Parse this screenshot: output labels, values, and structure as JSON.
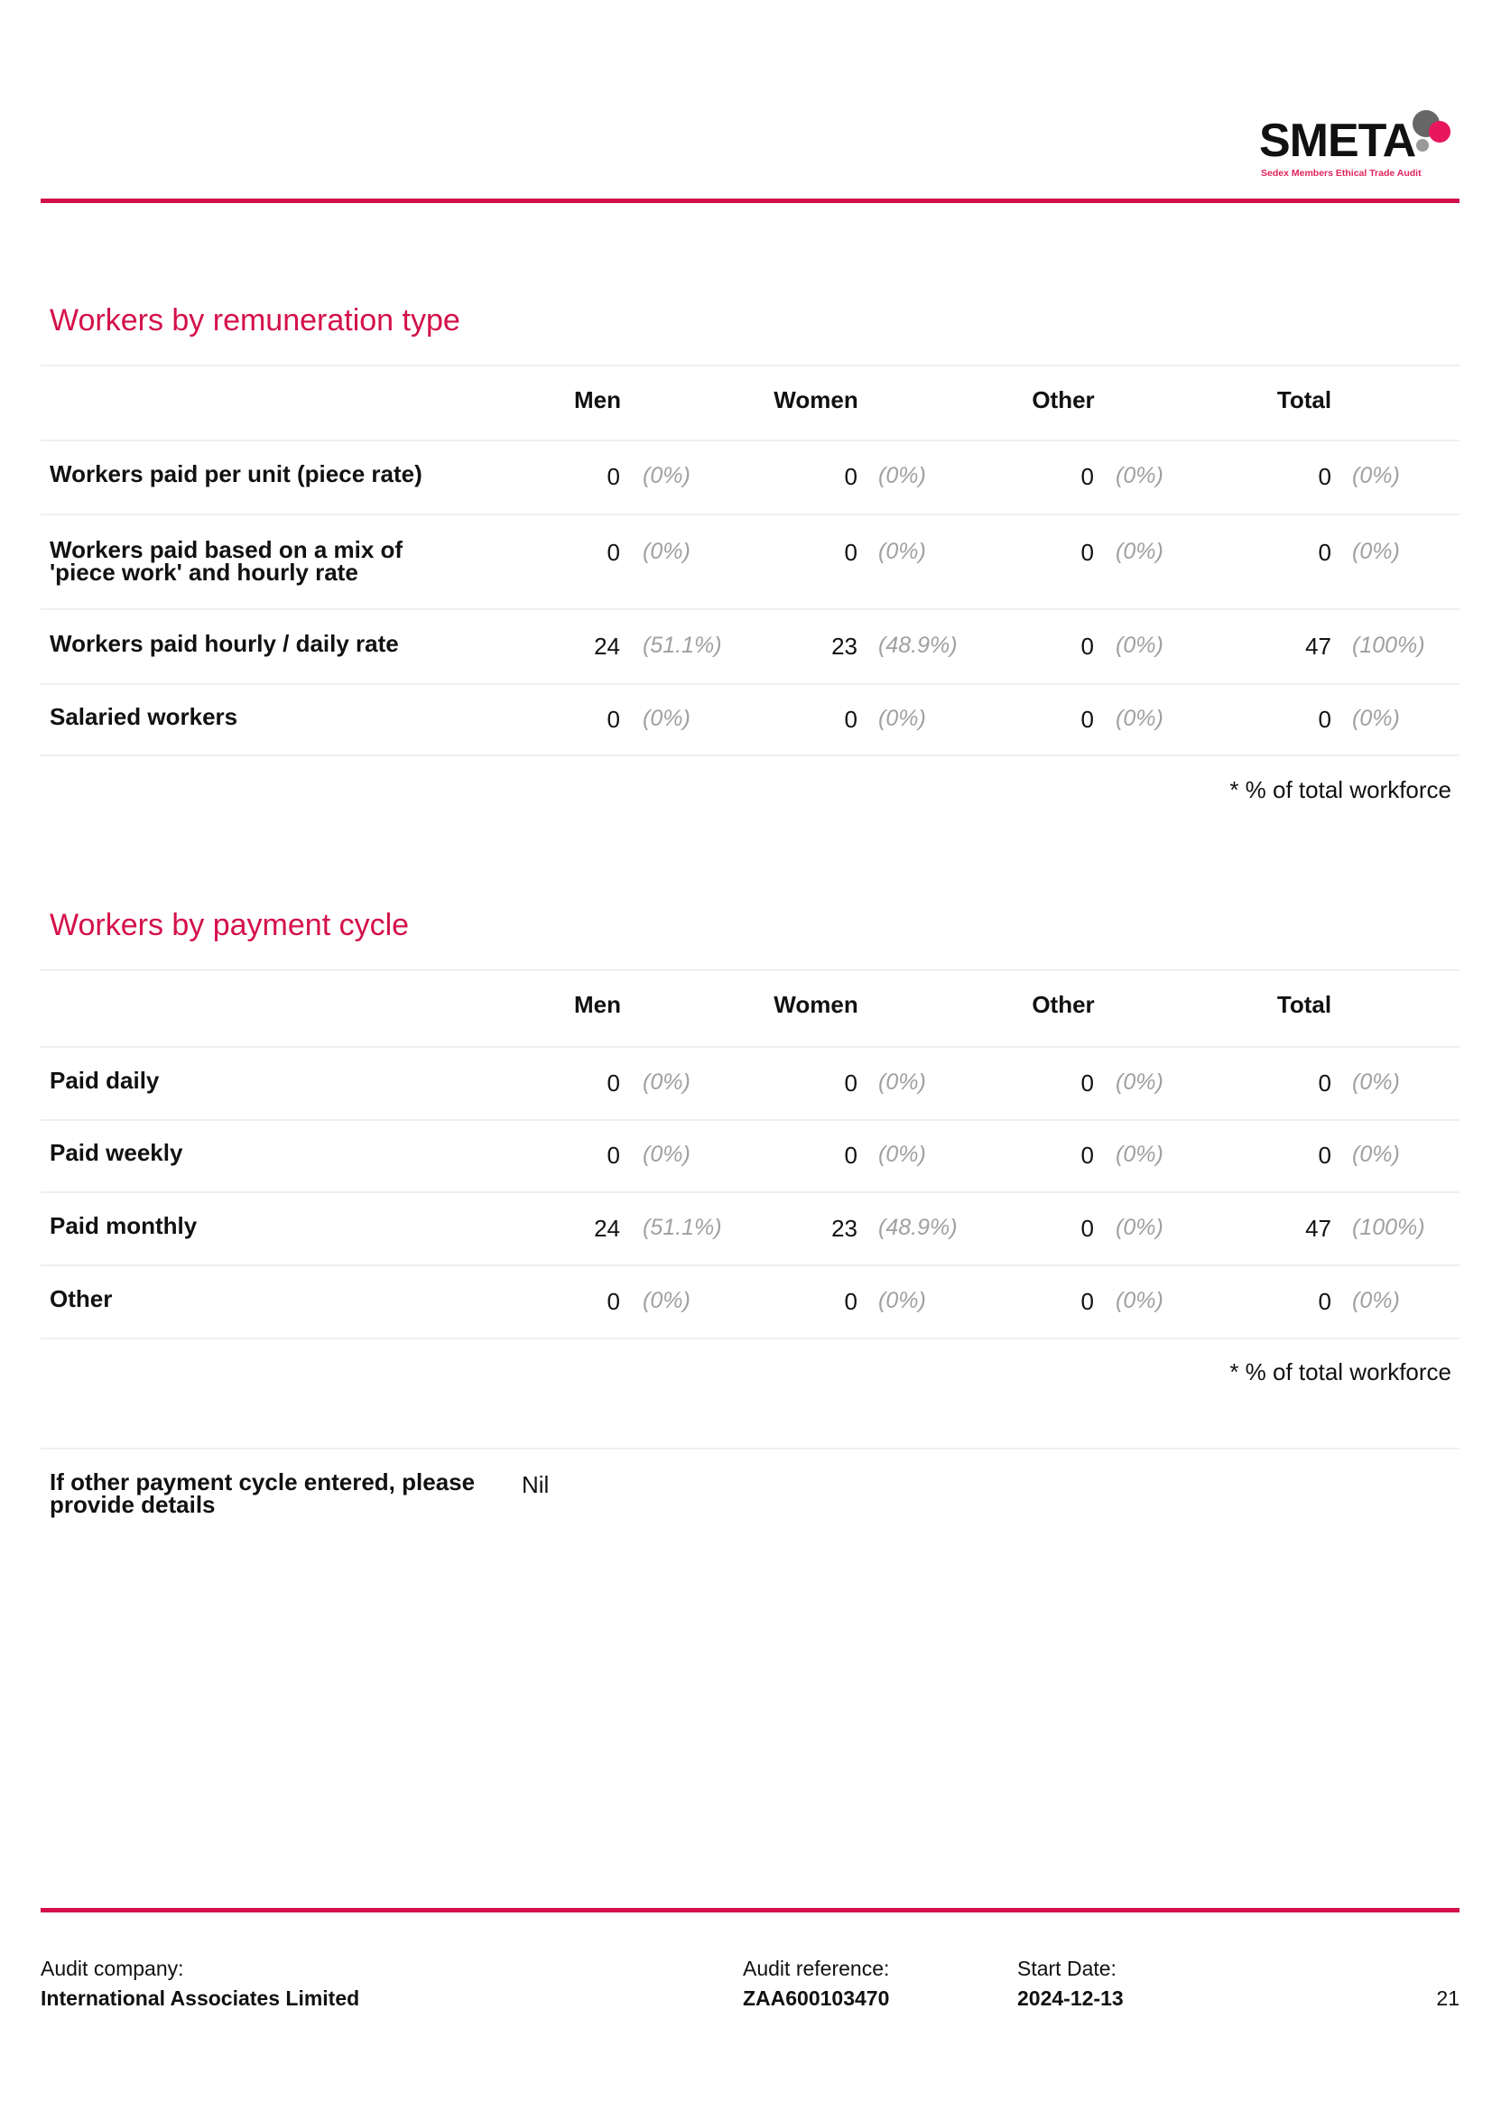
{
  "header": {
    "logo_text": "SMETA",
    "logo_tagline": "Sedex Members Ethical Trade Audit",
    "accent_color": "#d4104a"
  },
  "columns": [
    "Men",
    "Women",
    "Other",
    "Total"
  ],
  "remuneration": {
    "title": "Workers by remuneration type",
    "rows": [
      {
        "label": "Workers paid per unit (piece rate)",
        "cells": [
          {
            "n": "0",
            "p": "(0%)"
          },
          {
            "n": "0",
            "p": "(0%)"
          },
          {
            "n": "0",
            "p": "(0%)"
          },
          {
            "n": "0",
            "p": "(0%)"
          }
        ]
      },
      {
        "label": "Workers paid based on a mix of 'piece work' and hourly rate",
        "cells": [
          {
            "n": "0",
            "p": "(0%)"
          },
          {
            "n": "0",
            "p": "(0%)"
          },
          {
            "n": "0",
            "p": "(0%)"
          },
          {
            "n": "0",
            "p": "(0%)"
          }
        ]
      },
      {
        "label": "Workers paid hourly / daily rate",
        "cells": [
          {
            "n": "24",
            "p": "(51.1%)"
          },
          {
            "n": "23",
            "p": "(48.9%)"
          },
          {
            "n": "0",
            "p": "(0%)"
          },
          {
            "n": "47",
            "p": "(100%)"
          }
        ]
      },
      {
        "label": "Salaried workers",
        "cells": [
          {
            "n": "0",
            "p": "(0%)"
          },
          {
            "n": "0",
            "p": "(0%)"
          },
          {
            "n": "0",
            "p": "(0%)"
          },
          {
            "n": "0",
            "p": "(0%)"
          }
        ]
      }
    ],
    "note": "* % of total workforce"
  },
  "payment_cycle": {
    "title": "Workers by payment cycle",
    "rows": [
      {
        "label": "Paid daily",
        "cells": [
          {
            "n": "0",
            "p": "(0%)"
          },
          {
            "n": "0",
            "p": "(0%)"
          },
          {
            "n": "0",
            "p": "(0%)"
          },
          {
            "n": "0",
            "p": "(0%)"
          }
        ]
      },
      {
        "label": "Paid weekly",
        "cells": [
          {
            "n": "0",
            "p": "(0%)"
          },
          {
            "n": "0",
            "p": "(0%)"
          },
          {
            "n": "0",
            "p": "(0%)"
          },
          {
            "n": "0",
            "p": "(0%)"
          }
        ]
      },
      {
        "label": "Paid monthly",
        "cells": [
          {
            "n": "24",
            "p": "(51.1%)"
          },
          {
            "n": "23",
            "p": "(48.9%)"
          },
          {
            "n": "0",
            "p": "(0%)"
          },
          {
            "n": "47",
            "p": "(100%)"
          }
        ]
      },
      {
        "label": "Other",
        "cells": [
          {
            "n": "0",
            "p": "(0%)"
          },
          {
            "n": "0",
            "p": "(0%)"
          },
          {
            "n": "0",
            "p": "(0%)"
          },
          {
            "n": "0",
            "p": "(0%)"
          }
        ]
      }
    ],
    "note": "* % of total workforce"
  },
  "other_details": {
    "label": "If other payment cycle entered, please provide details",
    "value": "Nil"
  },
  "footer": {
    "company_label": "Audit company:",
    "company_value": "International Associates Limited",
    "reference_label": "Audit reference:",
    "reference_value": "ZAA600103470",
    "start_label": "Start Date:",
    "start_value": "2024-12-13",
    "page_number": "21"
  }
}
